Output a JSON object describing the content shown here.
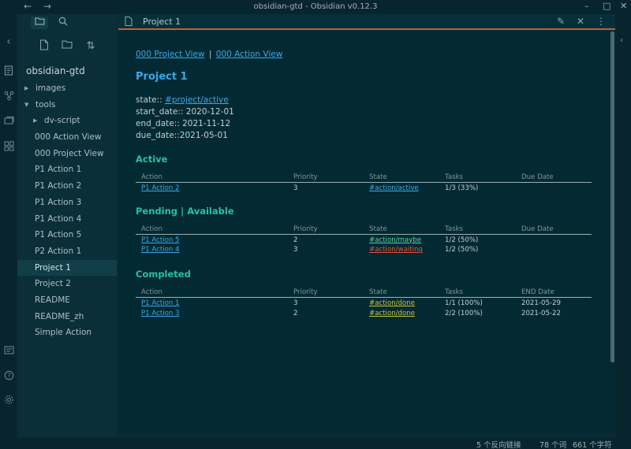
{
  "window": {
    "title": "obsidian-gtd - Obsidian v0.12.3",
    "back": "←",
    "forward": "→",
    "minimize": "–",
    "maximize": "□",
    "close": "✕"
  },
  "ribbon": {
    "collapse": "‹",
    "icons": [
      "file-open-icon",
      "graph-icon",
      "cards-icon",
      "dashboard-icon",
      "vault-icon",
      "help-icon",
      "settings-icon"
    ]
  },
  "sidebar": {
    "tab_files": "🗀",
    "tab_search": "⌕",
    "action_new_note": "🗋",
    "action_new_folder": "🗀",
    "action_sort": "⇅",
    "vault_name": "obsidian-gtd",
    "items": [
      {
        "label": "images",
        "level": 0,
        "caret": "▶"
      },
      {
        "label": "tools",
        "level": 0,
        "caret": "▼"
      },
      {
        "label": "dv-script",
        "level": 1,
        "caret": "▶"
      },
      {
        "label": "000 Action View",
        "level": 1,
        "caret": ""
      },
      {
        "label": "000 Project View",
        "level": 1,
        "caret": ""
      },
      {
        "label": "P1 Action 1",
        "level": 1,
        "caret": ""
      },
      {
        "label": "P1 Action 2",
        "level": 1,
        "caret": ""
      },
      {
        "label": "P1 Action 3",
        "level": 1,
        "caret": ""
      },
      {
        "label": "P1 Action 4",
        "level": 1,
        "caret": ""
      },
      {
        "label": "P1 Action 5",
        "level": 1,
        "caret": ""
      },
      {
        "label": "P2 Action 1",
        "level": 1,
        "caret": ""
      },
      {
        "label": "Project 1",
        "level": 1,
        "caret": "",
        "active": true
      },
      {
        "label": "Project 2",
        "level": 1,
        "caret": ""
      },
      {
        "label": "README",
        "level": 1,
        "caret": ""
      },
      {
        "label": "README_zh",
        "level": 1,
        "caret": ""
      },
      {
        "label": "Simple Action",
        "level": 1,
        "caret": ""
      }
    ]
  },
  "pane": {
    "title": "Project 1",
    "file_icon": "🗋",
    "edit_icon": "✎",
    "close_icon": "✕",
    "more_icon": "⋮"
  },
  "note": {
    "link_project_view": "000 Project View",
    "link_sep": "|",
    "link_action_view": "000 Action View",
    "heading": "Project 1",
    "state_label": "state:: ",
    "state_tag": "#project/active",
    "start_date": "start_date:: 2020-12-01",
    "end_date": "end_date:: 2021-11-12",
    "due_date": "due_date::2021-05-01",
    "sections": [
      {
        "heading": "Active",
        "columns": [
          "Action",
          "Priority",
          "State",
          "Tasks",
          "Due Date"
        ],
        "rows": [
          {
            "action": "P1 Action 2",
            "priority": "3",
            "state": "#action/active",
            "state_class": "tag-active",
            "tasks": "1/3 (33%)",
            "date": ""
          }
        ]
      },
      {
        "heading": "Pending | Available",
        "columns": [
          "Action",
          "Priority",
          "State",
          "Tasks",
          "Due Date"
        ],
        "rows": [
          {
            "action": "P1 Action 5",
            "priority": "2",
            "state": "#action/maybe",
            "state_class": "tag-maybe",
            "tasks": "1/2 (50%)",
            "date": ""
          },
          {
            "action": "P1 Action 4",
            "priority": "3",
            "state": "#action/waiting",
            "state_class": "tag-waiting",
            "tasks": "1/2 (50%)",
            "date": ""
          }
        ]
      },
      {
        "heading": "Completed",
        "columns": [
          "Action",
          "Priority",
          "State",
          "Tasks",
          "END Date"
        ],
        "rows": [
          {
            "action": "P1 Action 1",
            "priority": "3",
            "state": "#action/done",
            "state_class": "tag-done",
            "tasks": "1/1 (100%)",
            "date": "2021-05-29"
          },
          {
            "action": "P1 Action 3",
            "priority": "2",
            "state": "#action/done",
            "state_class": "tag-done",
            "tasks": "2/2 (100%)",
            "date": "2021-05-22"
          }
        ]
      }
    ]
  },
  "right_rail": {
    "expand": "‹"
  },
  "status": {
    "backlinks": "5 个反向链接",
    "words": "78 个词",
    "chars": "661 个字符"
  }
}
